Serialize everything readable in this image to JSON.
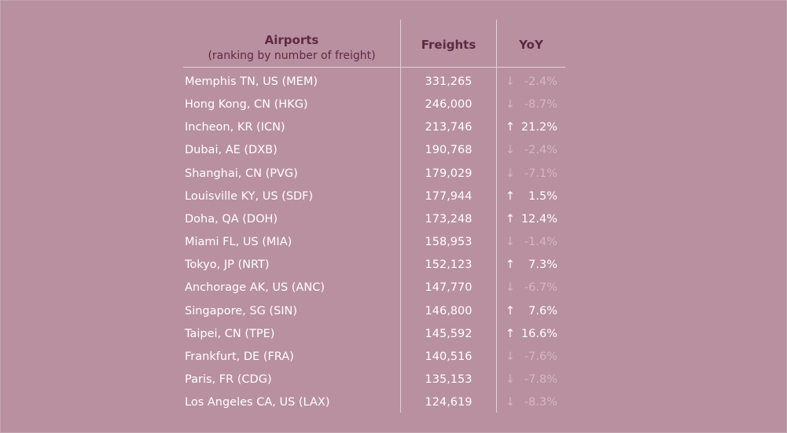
{
  "chart_data": {
    "type": "table",
    "columns": {
      "airports": "Airports",
      "airports_sub": "(ranking by number of freight)",
      "freights": "Freights",
      "yoy": "YoY"
    },
    "rows": [
      {
        "airport": "Memphis TN, US (MEM)",
        "freights": "331,265",
        "direction": "down",
        "arrow": "↓",
        "yoy": "-2.4%"
      },
      {
        "airport": "Hong Kong, CN (HKG)",
        "freights": "246,000",
        "direction": "down",
        "arrow": "↓",
        "yoy": "-8.7%"
      },
      {
        "airport": "Incheon, KR (ICN)",
        "freights": "213,746",
        "direction": "up",
        "arrow": "↑",
        "yoy": "21.2%"
      },
      {
        "airport": "Dubai, AE (DXB)",
        "freights": "190,768",
        "direction": "down",
        "arrow": "↓",
        "yoy": "-2.4%"
      },
      {
        "airport": "Shanghai, CN (PVG)",
        "freights": "179,029",
        "direction": "down",
        "arrow": "↓",
        "yoy": "-7.1%"
      },
      {
        "airport": "Louisville KY, US (SDF)",
        "freights": "177,944",
        "direction": "up",
        "arrow": "↑",
        "yoy": "1.5%"
      },
      {
        "airport": "Doha, QA (DOH)",
        "freights": "173,248",
        "direction": "up",
        "arrow": "↑",
        "yoy": "12.4%"
      },
      {
        "airport": "Miami FL, US (MIA)",
        "freights": "158,953",
        "direction": "down",
        "arrow": "↓",
        "yoy": "-1.4%"
      },
      {
        "airport": "Tokyo, JP (NRT)",
        "freights": "152,123",
        "direction": "up",
        "arrow": "↑",
        "yoy": "7.3%"
      },
      {
        "airport": "Anchorage AK, US (ANC)",
        "freights": "147,770",
        "direction": "down",
        "arrow": "↓",
        "yoy": "-6.7%"
      },
      {
        "airport": "Singapore, SG (SIN)",
        "freights": "146,800",
        "direction": "up",
        "arrow": "↑",
        "yoy": "7.6%"
      },
      {
        "airport": "Taipei, CN (TPE)",
        "freights": "145,592",
        "direction": "up",
        "arrow": "↑",
        "yoy": "16.6%"
      },
      {
        "airport": "Frankfurt, DE (FRA)",
        "freights": "140,516",
        "direction": "down",
        "arrow": "↓",
        "yoy": "-7.6%"
      },
      {
        "airport": "Paris, FR (CDG)",
        "freights": "135,153",
        "direction": "down",
        "arrow": "↓",
        "yoy": "-7.8%"
      },
      {
        "airport": "Los Angeles CA, US (LAX)",
        "freights": "124,619",
        "direction": "down",
        "arrow": "↓",
        "yoy": "-8.3%"
      }
    ]
  },
  "colors": {
    "background": "#b8909f",
    "header_text": "#5e2a40",
    "row_text": "#ffffff",
    "negative_text": "#d4b7c3",
    "rule": "#e4d0d8"
  }
}
